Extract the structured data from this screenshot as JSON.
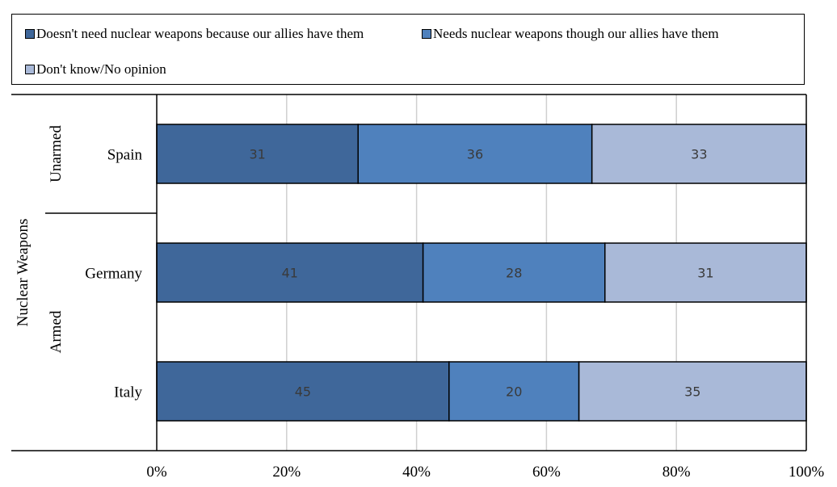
{
  "chart_data": {
    "type": "bar",
    "orientation": "horizontal",
    "stacked": true,
    "categories": [
      "Spain",
      "Germany",
      "Italy"
    ],
    "groups": [
      {
        "label": "Unarmed",
        "categories": [
          "Spain"
        ]
      },
      {
        "label": "Armed",
        "categories": [
          "Germany",
          "Italy"
        ]
      }
    ],
    "group_axis_label": "Nuclear Weapons",
    "series": [
      {
        "name": "Doesn't need nuclear weapons because our allies have them",
        "color": "#3f679a",
        "values": [
          31,
          41,
          45
        ]
      },
      {
        "name": "Needs nuclear weapons though our allies have them",
        "color": "#4f81bd",
        "values": [
          36,
          28,
          20
        ]
      },
      {
        "name": "Don't know/No opinion",
        "color": "#a9b9d8",
        "values": [
          33,
          31,
          35
        ]
      }
    ],
    "x_ticks": [
      "0%",
      "20%",
      "40%",
      "60%",
      "80%",
      "100%"
    ],
    "xlim": [
      0,
      100
    ],
    "grid": true,
    "legend_position": "top"
  }
}
